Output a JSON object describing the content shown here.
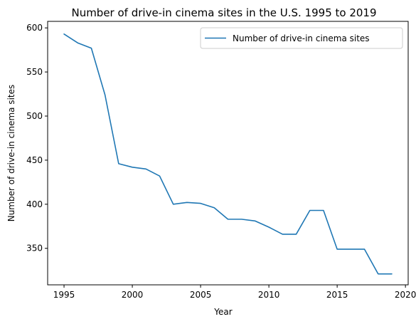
{
  "chart_data": {
    "type": "line",
    "title": "Number of drive-in cinema sites in the U.S. 1995 to 2019",
    "xlabel": "Year",
    "ylabel": "Number of drive-in cinema sites",
    "xlim": [
      1993.8,
      2020.2
    ],
    "ylim": [
      308.6,
      607.4
    ],
    "xticks": [
      1995,
      2000,
      2005,
      2010,
      2015,
      2020
    ],
    "yticks": [
      350,
      400,
      450,
      500,
      550,
      600
    ],
    "xtick_labels": [
      "1995",
      "2000",
      "2005",
      "2010",
      "2015",
      "2020"
    ],
    "ytick_labels": [
      "350",
      "400",
      "450",
      "500",
      "550",
      "600"
    ],
    "grid": false,
    "legend_position": "top-right",
    "color": "#1f77b4",
    "series": [
      {
        "name": "Number of drive-in cinema sites",
        "x": [
          1995,
          1996,
          1997,
          1998,
          1999,
          2000,
          2001,
          2002,
          2003,
          2004,
          2005,
          2006,
          2007,
          2008,
          2009,
          2010,
          2011,
          2012,
          2013,
          2014,
          2015,
          2016,
          2017,
          2018,
          2019
        ],
        "y": [
          593,
          583,
          577,
          524,
          446,
          442,
          440,
          432,
          400,
          402,
          401,
          396,
          383,
          383,
          381,
          374,
          366,
          366,
          393,
          393,
          349,
          349,
          349,
          321,
          321
        ]
      }
    ]
  }
}
